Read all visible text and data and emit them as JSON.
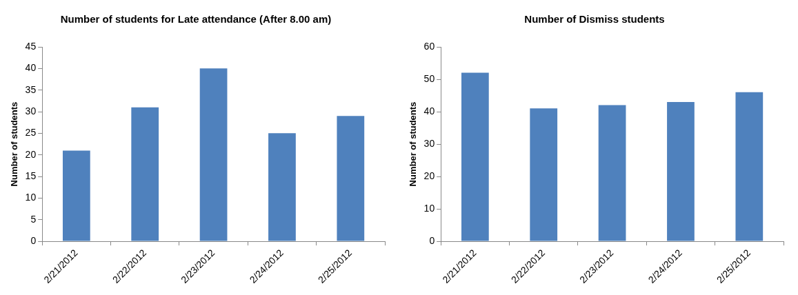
{
  "chart_data": [
    {
      "type": "bar",
      "title": "Number of students for Late attendance (After 8.00 am)",
      "ylabel": "Number of students",
      "categories": [
        "2/21/2012",
        "2/22/2012",
        "2/23/2012",
        "2/24/2012",
        "2/25/2012"
      ],
      "values": [
        21,
        31,
        40,
        25,
        29
      ],
      "color": "#4f81bd",
      "ylim": [
        0,
        45
      ],
      "yticks": [
        0,
        5,
        10,
        15,
        20,
        25,
        30,
        35,
        40,
        45
      ],
      "grid": false,
      "legend": false
    },
    {
      "type": "bar",
      "title": "Number of Dismiss students",
      "ylabel": "Number of students",
      "categories": [
        "2/21/2012",
        "2/22/2012",
        "2/23/2012",
        "2/24/2012",
        "2/25/2012"
      ],
      "values": [
        52,
        41,
        42,
        43,
        46
      ],
      "color": "#4f81bd",
      "ylim": [
        0,
        60
      ],
      "yticks": [
        0,
        10,
        20,
        30,
        40,
        50,
        60
      ],
      "grid": false,
      "legend": false
    }
  ]
}
